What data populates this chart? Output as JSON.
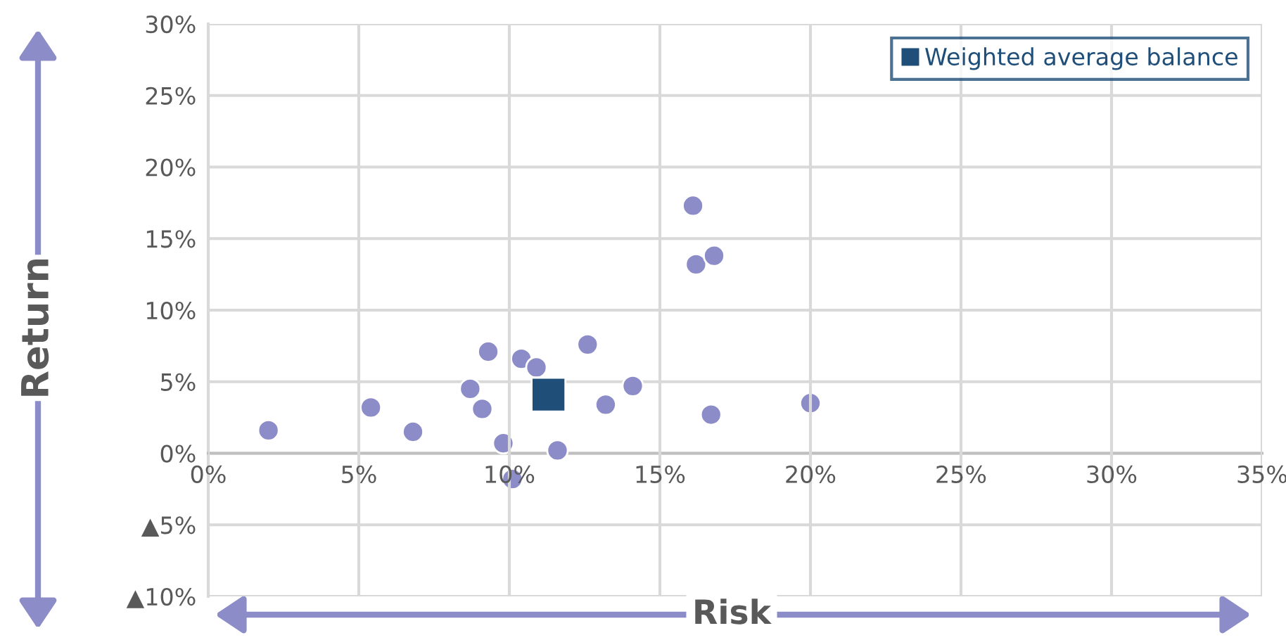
{
  "chart_data": {
    "type": "scatter",
    "xlabel": "Risk",
    "ylabel": "Return",
    "series": [
      {
        "color": "#8c8cc8",
        "marker": "circle",
        "x": [
          2.0,
          5.4,
          6.8,
          8.7,
          9.1,
          9.3,
          9.8,
          10.1,
          10.4,
          10.9,
          11.6,
          12.6,
          13.2,
          14.1,
          16.1,
          16.2,
          16.8,
          16.7,
          20.0
        ],
        "values": [
          1.6,
          3.2,
          1.5,
          4.5,
          3.1,
          7.1,
          0.7,
          -1.8,
          6.6,
          6.0,
          0.2,
          7.6,
          3.4,
          4.7,
          17.3,
          13.2,
          13.8,
          2.7,
          3.5
        ]
      },
      {
        "name": "Weighted average balance",
        "color": "#1f4e79",
        "marker": "square",
        "x": [
          11.3
        ],
        "values": [
          4.1
        ]
      }
    ],
    "xlim": [
      0,
      35
    ],
    "xticks": [
      {
        "value": 0,
        "label": "0%"
      },
      {
        "value": 5,
        "label": "5%"
      },
      {
        "value": 10,
        "label": "10%"
      },
      {
        "value": 15,
        "label": "15%"
      },
      {
        "value": 20,
        "label": "20%"
      },
      {
        "value": 25,
        "label": "25%"
      },
      {
        "value": 30,
        "label": "30%"
      },
      {
        "value": 35,
        "label": "35%"
      }
    ],
    "ylim": [
      -10,
      30
    ],
    "yticks": [
      {
        "value": -10,
        "label": "▲10%"
      },
      {
        "value": -5,
        "label": "▲5%"
      },
      {
        "value": 0,
        "label": "0%"
      },
      {
        "value": 5,
        "label": "5%"
      },
      {
        "value": 10,
        "label": "10%"
      },
      {
        "value": 15,
        "label": "15%"
      },
      {
        "value": 20,
        "label": "20%"
      },
      {
        "value": 25,
        "label": "25%"
      },
      {
        "value": 30,
        "label": "30%"
      }
    ],
    "grid": true,
    "legend": "top right"
  }
}
